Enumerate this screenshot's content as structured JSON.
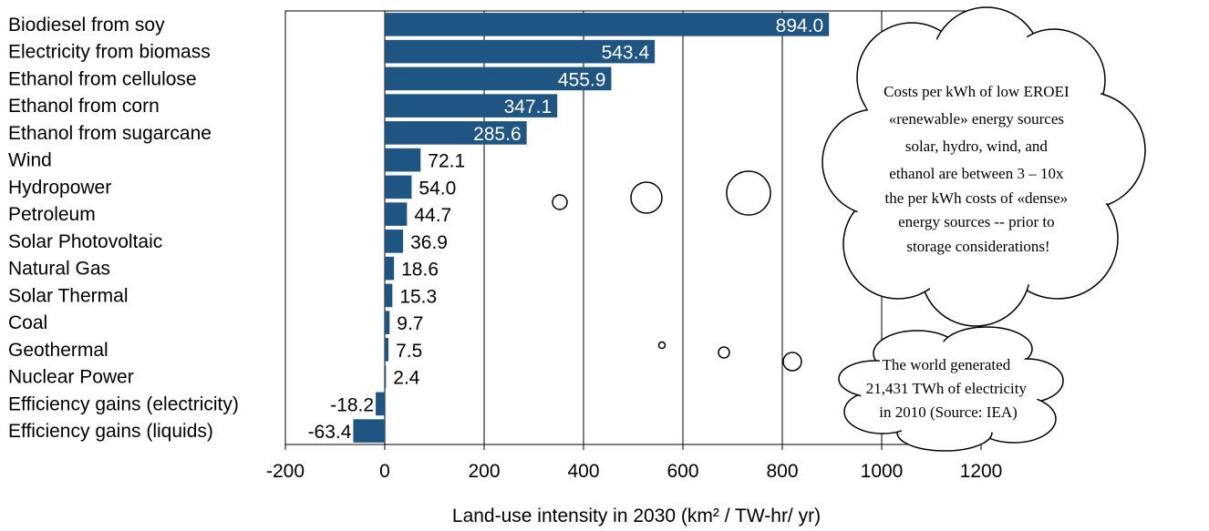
{
  "chart_data": {
    "type": "bar",
    "orientation": "horizontal",
    "categories": [
      "Biodiesel from soy",
      "Electricity from biomass",
      "Ethanol from cellulose",
      "Ethanol from corn",
      "Ethanol from sugarcane",
      "Wind",
      "Hydropower",
      "Petroleum",
      "Solar Photovoltaic",
      "Natural Gas",
      "Solar Thermal",
      "Coal",
      "Geothermal",
      "Nuclear Power",
      "Efficiency gains (electricity)",
      "Efficiency gains (liquids)"
    ],
    "values": [
      894.0,
      543.4,
      455.9,
      347.1,
      285.6,
      72.1,
      54.0,
      44.7,
      36.9,
      18.6,
      15.3,
      9.7,
      7.5,
      2.4,
      -18.2,
      -63.4
    ],
    "value_labels": [
      "894.0",
      "543.4",
      "455.9",
      "347.1",
      "285.6",
      "72.1",
      "54.0",
      "44.7",
      "36.9",
      "18.6",
      "15.3",
      "9.7",
      "7.5",
      "2.4",
      "-18.2",
      "-63.4"
    ],
    "xlim": [
      -200,
      1200
    ],
    "xticks": [
      "-200",
      "0",
      "200",
      "400",
      "600",
      "800",
      "1000",
      "1200"
    ],
    "xlabel": "Land-use intensity in 2030 (km² / TW-hr/ yr)",
    "ylabel": "",
    "title": "",
    "grid": "vertical",
    "bar_color": "#1f5582",
    "annotations": [
      {
        "kind": "thought-cloud",
        "lines": [
          "Costs per kWh of low EROEI",
          "«renewable» energy sources",
          "solar, hydro, wind, and",
          "ethanol are between 3 – 10x",
          "the per kWh costs of «dense»",
          "energy sources -- prior to",
          "storage considerations!"
        ]
      },
      {
        "kind": "thought-cloud",
        "lines": [
          "The world generated",
          "21,431 TWh of electricity",
          "in 2010 (Source: IEA)"
        ]
      }
    ]
  }
}
